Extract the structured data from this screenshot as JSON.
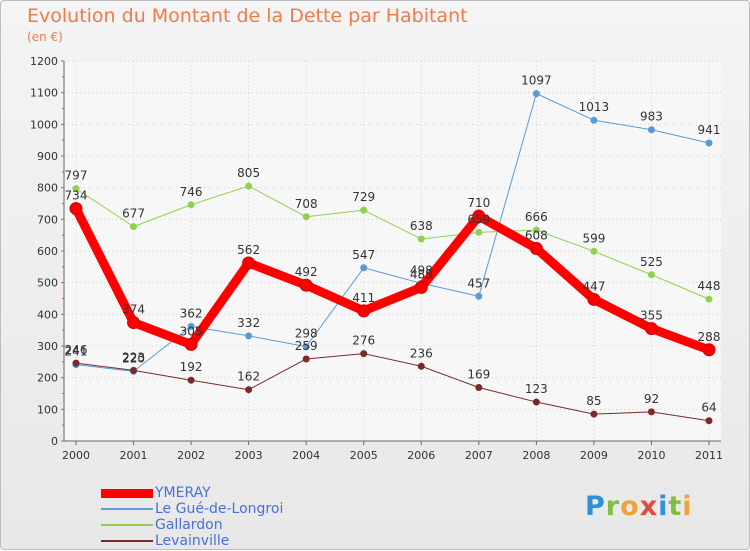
{
  "title": "Evolution du Montant de la Dette par Habitant",
  "unit_label": "(en €)",
  "logo": {
    "letters": [
      {
        "ch": "P",
        "color": "#2f8fd8"
      },
      {
        "ch": "r",
        "color": "#7fbf3f"
      },
      {
        "ch": "o",
        "color": "#f2a23a"
      },
      {
        "ch": "x",
        "color": "#e04b3f"
      },
      {
        "ch": "i",
        "color": "#2f8fd8"
      },
      {
        "ch": "t",
        "color": "#7fbf3f"
      },
      {
        "ch": "i",
        "color": "#f2a23a"
      }
    ]
  },
  "chart_data": {
    "type": "line",
    "x": [
      "2000",
      "2001",
      "2002",
      "2003",
      "2004",
      "2005",
      "2006",
      "2007",
      "2008",
      "2009",
      "2010",
      "2011"
    ],
    "ylim": [
      0,
      1200
    ],
    "yticks": [
      0,
      100,
      200,
      300,
      400,
      500,
      600,
      700,
      800,
      900,
      1000,
      1100,
      1200
    ],
    "grid": true,
    "legend_position": "bottom-left",
    "series": [
      {
        "name": "Le Gué-de-Longroi",
        "color": "#5b9bd5",
        "width": 1,
        "values": [
          241,
          220,
          362,
          332,
          298,
          547,
          498,
          457,
          1097,
          1013,
          983,
          941
        ]
      },
      {
        "name": "Gallardon",
        "color": "#8fd14f",
        "width": 1,
        "values": [
          797,
          677,
          746,
          805,
          708,
          729,
          638,
          659,
          666,
          599,
          525,
          448
        ]
      },
      {
        "name": "Levainville",
        "color": "#7b2a2a",
        "width": 1,
        "values": [
          246,
          223,
          192,
          162,
          259,
          276,
          236,
          169,
          123,
          85,
          92,
          64
        ]
      },
      {
        "name": "YMERAY",
        "color": "#ff0000",
        "width": 9,
        "values": [
          734,
          374,
          305,
          562,
          492,
          411,
          485,
          710,
          608,
          447,
          355,
          288
        ]
      }
    ],
    "legend_order": [
      "YMERAY",
      "Le Gué-de-Longroi",
      "Gallardon",
      "Levainville"
    ]
  }
}
